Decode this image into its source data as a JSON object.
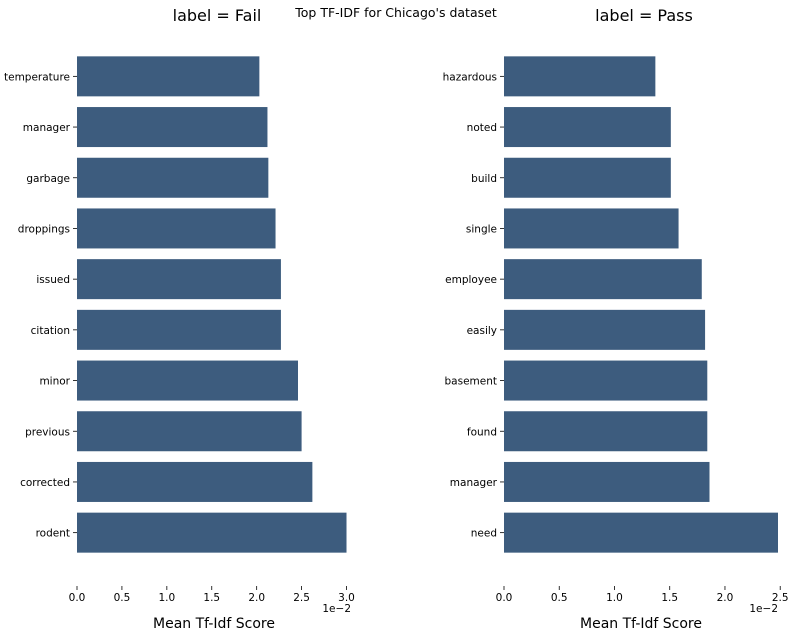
{
  "figure": {
    "suptitle": "Top TF-IDF for Chicago's dataset"
  },
  "chart_data": [
    {
      "type": "bar",
      "orientation": "horizontal",
      "title": "label = Fail",
      "xlabel": "Mean Tf-Idf Score",
      "ylabel": "",
      "x_scale_label": "1e−2",
      "xlim": [
        0,
        3.05
      ],
      "xticks": [
        "0.0",
        "0.5",
        "1.0",
        "1.5",
        "2.0",
        "2.5",
        "3.0"
      ],
      "categories": [
        "temperature",
        "manager",
        "garbage",
        "droppings",
        "issued",
        "citation",
        "minor",
        "previous",
        "corrected",
        "rodent"
      ],
      "values": [
        2.03,
        2.12,
        2.13,
        2.21,
        2.27,
        2.27,
        2.46,
        2.5,
        2.62,
        3.0
      ],
      "color": "#3d5c7e",
      "grid": false
    },
    {
      "type": "bar",
      "orientation": "horizontal",
      "title": "label = Pass",
      "xlabel": "Mean Tf-Idf Score",
      "ylabel": "",
      "x_scale_label": "1e−2",
      "xlim": [
        0,
        2.48
      ],
      "xticks": [
        "0.0",
        "0.5",
        "1.0",
        "1.5",
        "2.0",
        "2.5"
      ],
      "categories": [
        "hazardous",
        "noted",
        "build",
        "single",
        "employee",
        "easily",
        "basement",
        "found",
        "manager",
        "need"
      ],
      "values": [
        1.37,
        1.51,
        1.51,
        1.58,
        1.79,
        1.82,
        1.84,
        1.84,
        1.86,
        2.48
      ],
      "color": "#3d5c7e",
      "grid": false
    }
  ]
}
